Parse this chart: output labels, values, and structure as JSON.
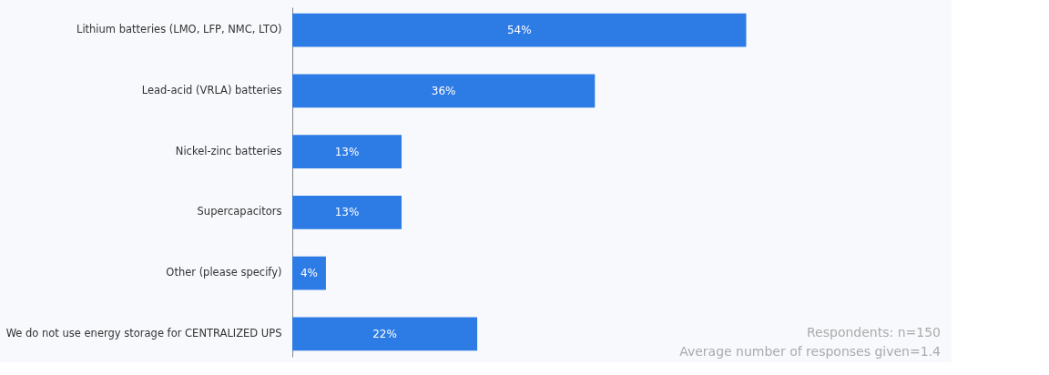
{
  "chart_data": {
    "type": "bar",
    "orientation": "horizontal",
    "data_labels": true,
    "categories": [
      "Lithium batteries (LMO, LFP, NMC, LTO)",
      "Lead-acid (VRLA) batteries",
      "Nickel-zinc batteries",
      "Supercapacitors",
      "Other (please specify)",
      "We do not use energy storage for CENTRALIZED UPS"
    ],
    "values": [
      54,
      36,
      13,
      13,
      4,
      22
    ],
    "value_labels": [
      "54%",
      "36%",
      "13%",
      "13%",
      "4%",
      "22%"
    ],
    "color": "#2d7be5",
    "xlim": [
      0,
      78
    ],
    "tick_labels": "y",
    "annotations": [
      "Respondents: n=150",
      "Average number of responses given=1.4"
    ]
  }
}
